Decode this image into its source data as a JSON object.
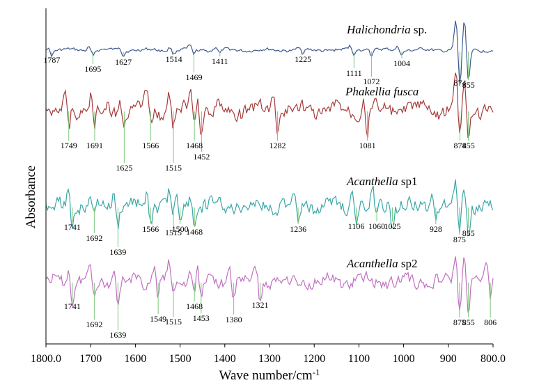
{
  "chart_data": {
    "type": "line",
    "xlabel": "Wave number/cm-1",
    "ylabel": "Absorbance",
    "xlim": [
      1800.0,
      800.0
    ],
    "x_ticks": [
      "1800.0",
      "1700",
      "1600",
      "1500",
      "1400",
      "1300",
      "1200",
      "1100",
      "1000",
      "900",
      "800.0"
    ],
    "grid": false,
    "series": [
      {
        "name": "Halichondria sp.",
        "name_italic": "Halichondria",
        "name_rest": " sp.",
        "color": "#3f5a8f",
        "peaks": [
          {
            "x": 1787,
            "label": "1787"
          },
          {
            "x": 1695,
            "label": "1695"
          },
          {
            "x": 1627,
            "label": "1627"
          },
          {
            "x": 1514,
            "label": "1514"
          },
          {
            "x": 1469,
            "label": "1469"
          },
          {
            "x": 1411,
            "label": "1411"
          },
          {
            "x": 1225,
            "label": "1225"
          },
          {
            "x": 1111,
            "label": "1111"
          },
          {
            "x": 1072,
            "label": "1072"
          },
          {
            "x": 1004,
            "label": "1004"
          },
          {
            "x": 874,
            "label": "874"
          },
          {
            "x": 855,
            "label": "855"
          }
        ]
      },
      {
        "name": "Phakellia fusca",
        "name_italic": "Phakellia fusca",
        "name_rest": "",
        "color": "#a63a3a",
        "peaks": [
          {
            "x": 1749,
            "label": "1749"
          },
          {
            "x": 1691,
            "label": "1691"
          },
          {
            "x": 1625,
            "label": "1625"
          },
          {
            "x": 1566,
            "label": "1566"
          },
          {
            "x": 1515,
            "label": "1515"
          },
          {
            "x": 1468,
            "label": "1468"
          },
          {
            "x": 1452,
            "label": "1452"
          },
          {
            "x": 1282,
            "label": "1282"
          },
          {
            "x": 1081,
            "label": "1081"
          },
          {
            "x": 874,
            "label": "874"
          },
          {
            "x": 855,
            "label": "855"
          }
        ]
      },
      {
        "name": "Acanthella sp1",
        "name_italic": "Acanthella",
        "name_rest": " sp1",
        "color": "#3aa6a6",
        "peaks": [
          {
            "x": 1741,
            "label": "1741"
          },
          {
            "x": 1692,
            "label": "1692"
          },
          {
            "x": 1639,
            "label": "1639"
          },
          {
            "x": 1566,
            "label": "1566"
          },
          {
            "x": 1515,
            "label": "1515"
          },
          {
            "x": 1500,
            "label": "1500"
          },
          {
            "x": 1468,
            "label": "1468"
          },
          {
            "x": 1236,
            "label": "1236"
          },
          {
            "x": 1106,
            "label": "1106"
          },
          {
            "x": 1060,
            "label": "1060"
          },
          {
            "x": 1025,
            "label": "1025"
          },
          {
            "x": 928,
            "label": "928"
          },
          {
            "x": 875,
            "label": "875"
          },
          {
            "x": 855,
            "label": "855"
          }
        ]
      },
      {
        "name": "Acanthella sp2",
        "name_italic": "Acanthella",
        "name_rest": " sp2",
        "color": "#c070c0",
        "peaks": [
          {
            "x": 1741,
            "label": "1741"
          },
          {
            "x": 1692,
            "label": "1692"
          },
          {
            "x": 1639,
            "label": "1639"
          },
          {
            "x": 1549,
            "label": "1549"
          },
          {
            "x": 1515,
            "label": "1515"
          },
          {
            "x": 1468,
            "label": "1468"
          },
          {
            "x": 1453,
            "label": "1453"
          },
          {
            "x": 1380,
            "label": "1380"
          },
          {
            "x": 1321,
            "label": "1321"
          },
          {
            "x": 875,
            "label": "875"
          },
          {
            "x": 855,
            "label": "855"
          },
          {
            "x": 806,
            "label": "806"
          }
        ]
      }
    ]
  }
}
